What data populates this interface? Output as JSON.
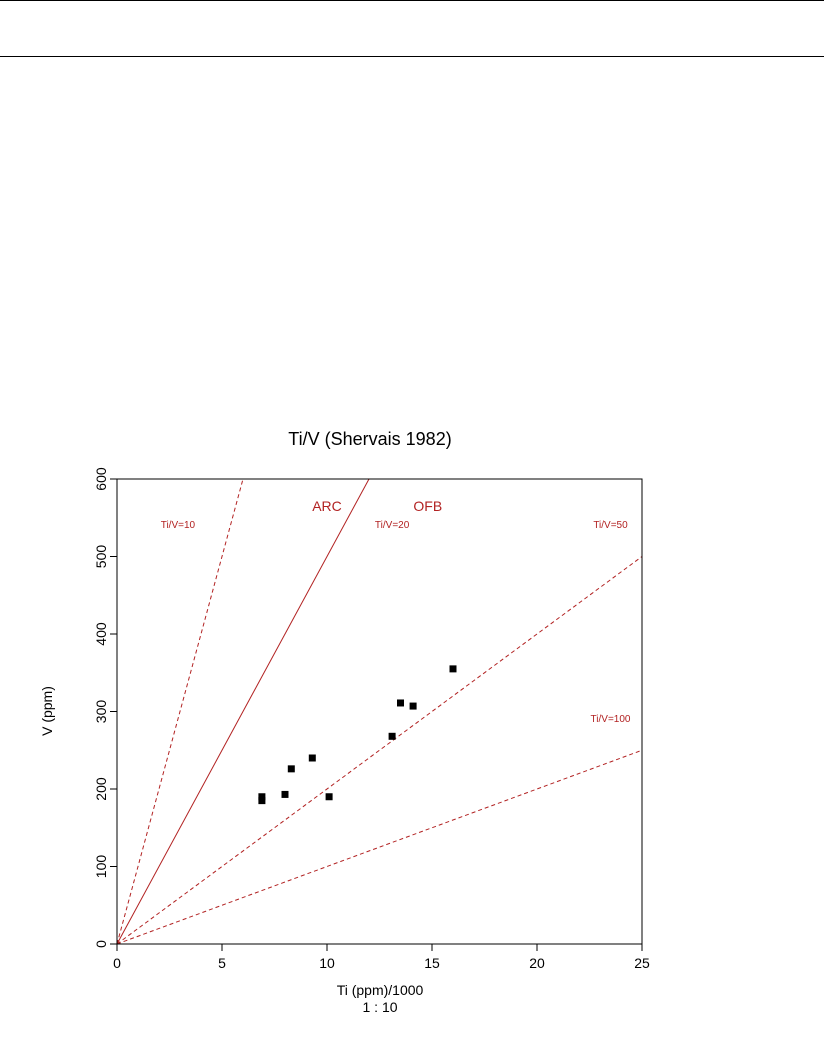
{
  "chart_data": {
    "type": "scatter",
    "title": "Ti/V (Shervais 1982)",
    "xlabel": "Ti (ppm)/1000",
    "xlabel_sub": "1 : 10",
    "ylabel": "V (ppm)",
    "xlim": [
      0,
      25
    ],
    "ylim": [
      0,
      600
    ],
    "x_ticks": [
      0,
      5,
      10,
      15,
      20,
      25
    ],
    "y_ticks": [
      0,
      100,
      200,
      300,
      400,
      500,
      600
    ],
    "grid": false,
    "marker_color": "#000000",
    "line_color": "#b22222",
    "reference_lines": [
      {
        "ratio": 10,
        "style": "dashed",
        "label": "Ti/V=10",
        "label_x": 2.9,
        "label_y": 540
      },
      {
        "ratio": 20,
        "style": "solid",
        "label": "Ti/V=20",
        "label_x": 13.1,
        "label_y": 540
      },
      {
        "ratio": 50,
        "style": "dashed",
        "label": "Ti/V=50",
        "label_x": 23.5,
        "label_y": 540
      },
      {
        "ratio": 100,
        "style": "dashed",
        "label": "Ti/V=100",
        "label_x": 23.5,
        "label_y": 290
      }
    ],
    "field_labels": [
      {
        "text": "ARC",
        "x": 10.0,
        "y": 565
      },
      {
        "text": "OFB",
        "x": 14.8,
        "y": 565
      }
    ],
    "points": [
      {
        "x": 6.9,
        "y": 190
      },
      {
        "x": 6.9,
        "y": 185
      },
      {
        "x": 8.0,
        "y": 193
      },
      {
        "x": 8.3,
        "y": 226
      },
      {
        "x": 9.3,
        "y": 240
      },
      {
        "x": 10.1,
        "y": 190
      },
      {
        "x": 13.1,
        "y": 268
      },
      {
        "x": 13.5,
        "y": 311
      },
      {
        "x": 14.1,
        "y": 307
      },
      {
        "x": 16.0,
        "y": 355
      }
    ]
  }
}
